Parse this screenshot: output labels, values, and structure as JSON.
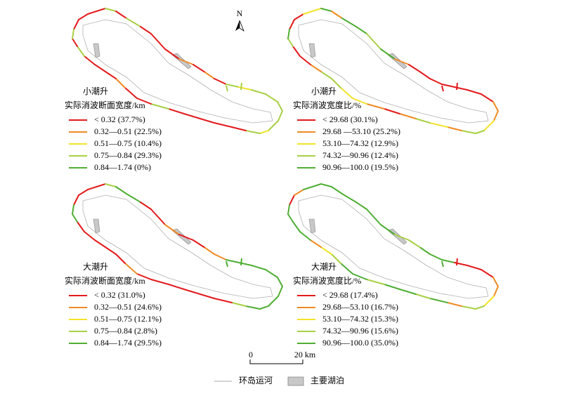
{
  "north": "N",
  "scale_bar": {
    "start": "0",
    "end": "20 km"
  },
  "panels": [
    {
      "title": "小潮升",
      "subtitle": "实际消波断面宽度/km",
      "legend": [
        "< 0.32 (37.7%)",
        "0.32—0.51 (22.5%)",
        "0.51—0.75 (10.4%)",
        "0.75—0.84 (29.3%)",
        "0.84—1.74 (0%)"
      ]
    },
    {
      "title": "小潮升",
      "subtitle": "实际消波宽度比/%",
      "legend": [
        "< 29.68 (30.1%)",
        "29.68 —53.10 (25.2%)",
        "53.10—74.32 (12.9%)",
        "74.32—90.96 (12.4%)",
        "90.96—100.0 (19.5%)"
      ]
    },
    {
      "title": "大潮升",
      "subtitle": "实际消波断面宽度/km",
      "legend": [
        "< 0.32 (31.0%)",
        "0.32—0.51 (24.6%)",
        "0.51—0.75 (12.1%)",
        "0.75—0.84 (2.8%)",
        "0.84—1.74 (29.5%)"
      ]
    },
    {
      "title": "大潮升",
      "subtitle": "实际消波宽度比/%",
      "legend": [
        "< 29.68 (17.4%)",
        "29.68—53.10 (16.7%)",
        "53.10—74.32 (15.3%)",
        "74.32—90.96 (15.6%)",
        "90.96—100.0 (35.0%)"
      ]
    }
  ],
  "legend": {
    "canal": "环岛运河",
    "lake": "主要湖泊"
  }
}
